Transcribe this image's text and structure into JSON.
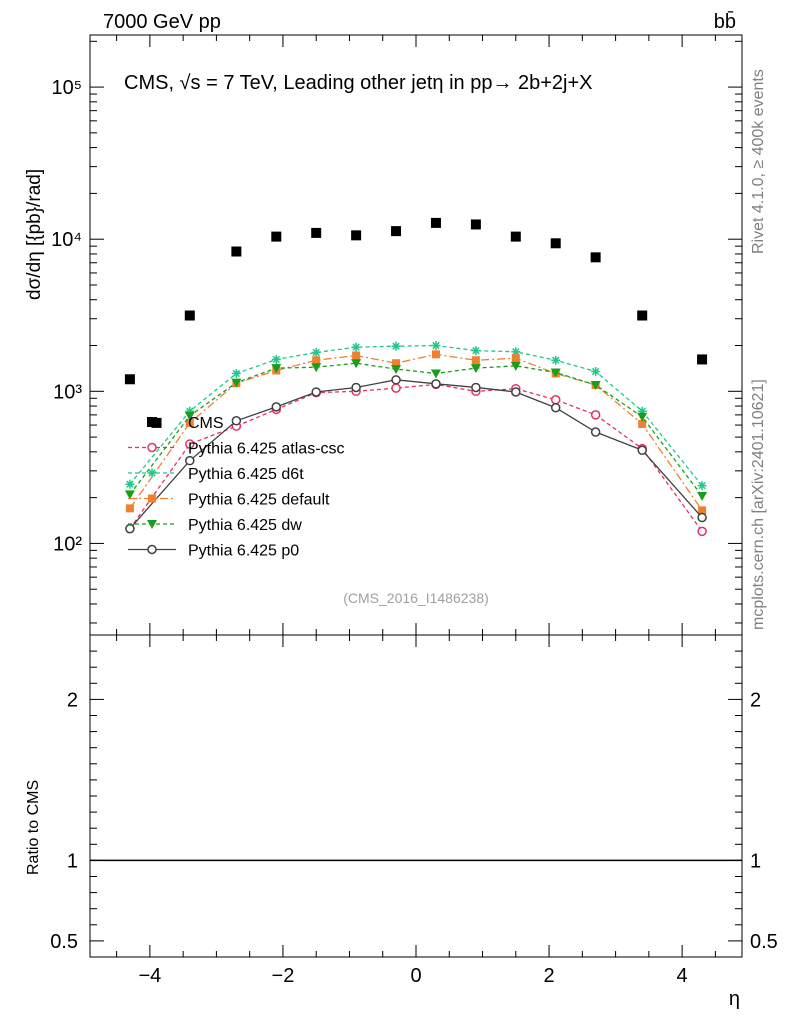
{
  "header": {
    "left": "7000 GeV pp",
    "right": "bb̄"
  },
  "side": {
    "rivet": "Rivet 4.1.0, ≥ 400k events",
    "mcplots": "mcplots.cern.ch [arXiv:2401.10621]"
  },
  "chart_data": {
    "type": "scatter",
    "title": "CMS, √s = 7 TeV, Leading other jetη in pp→  2b+2j+X",
    "watermark": "(CMS_2016_I1486238)",
    "xlabel": "η",
    "ylabel": "dσ/dη [{pb}/rad]",
    "ratio_ylabel": "Ratio to CMS",
    "xlim": [
      -4.9,
      4.9
    ],
    "ylim": [
      25,
      220000
    ],
    "ratio_ylim": [
      0.4,
      2.4
    ],
    "yscale": "log",
    "x_ticks": [
      -4,
      -2,
      0,
      2,
      4
    ],
    "x_tick_labels": [
      "−4",
      "−2",
      "0",
      "2",
      "4"
    ],
    "y_ticks": [
      100,
      1000,
      10000,
      100000
    ],
    "y_tick_labels": [
      "10²",
      "10³",
      "10⁴",
      "10⁵"
    ],
    "ratio_ticks": [
      0.5,
      1,
      2
    ],
    "ratio_tick_labels": [
      "0.5",
      "1",
      "2"
    ],
    "x": [
      -4.3,
      -3.4,
      -2.7,
      -2.1,
      -1.5,
      -0.9,
      -0.3,
      0.3,
      0.9,
      1.5,
      2.1,
      2.7,
      3.4,
      4.3
    ],
    "series": [
      {
        "name": "CMS",
        "color": "#000000",
        "marker": "square",
        "line": "none",
        "x": [
          -4.3,
          -3.9,
          -3.4,
          -2.7,
          -2.1,
          -1.5,
          -0.9,
          -0.3,
          0.3,
          0.9,
          1.5,
          2.1,
          2.7,
          3.4,
          4.3
        ],
        "values": [
          1200,
          620,
          3150,
          8300,
          10400,
          11000,
          10600,
          11300,
          12800,
          12500,
          10400,
          9400,
          7600,
          3150,
          1620
        ]
      },
      {
        "name": "Pythia 6.425 atlas-csc",
        "color": "#e8305e",
        "marker": "open-circle",
        "line": "dashed",
        "values": [
          125,
          450,
          590,
          760,
          980,
          1000,
          1050,
          1110,
          1000,
          1040,
          880,
          700,
          420,
          120
        ]
      },
      {
        "name": "Pythia 6.425 d6t",
        "color": "#1ec88a",
        "marker": "star",
        "line": "dashed",
        "values": [
          245,
          740,
          1310,
          1620,
          1800,
          1950,
          1980,
          2000,
          1850,
          1820,
          1600,
          1350,
          740,
          240
        ]
      },
      {
        "name": "Pythia 6.425 default",
        "color": "#f08030",
        "marker": "filled-square",
        "line": "dashdot",
        "values": [
          170,
          620,
          1130,
          1370,
          1600,
          1720,
          1530,
          1750,
          1600,
          1650,
          1310,
          1100,
          610,
          165
        ]
      },
      {
        "name": "Pythia 6.425 dw",
        "color": "#1a9e1a",
        "marker": "down-triangle",
        "line": "dashed",
        "values": [
          210,
          690,
          1140,
          1420,
          1440,
          1530,
          1400,
          1310,
          1420,
          1470,
          1330,
          1100,
          680,
          205
        ]
      },
      {
        "name": "Pythia 6.425 p0",
        "color": "#404040",
        "marker": "open-circle",
        "line": "solid",
        "values": [
          125,
          350,
          640,
          790,
          990,
          1060,
          1190,
          1120,
          1060,
          990,
          780,
          540,
          410,
          148
        ]
      }
    ],
    "ratio_line": 1,
    "legend_location": "center-left"
  }
}
